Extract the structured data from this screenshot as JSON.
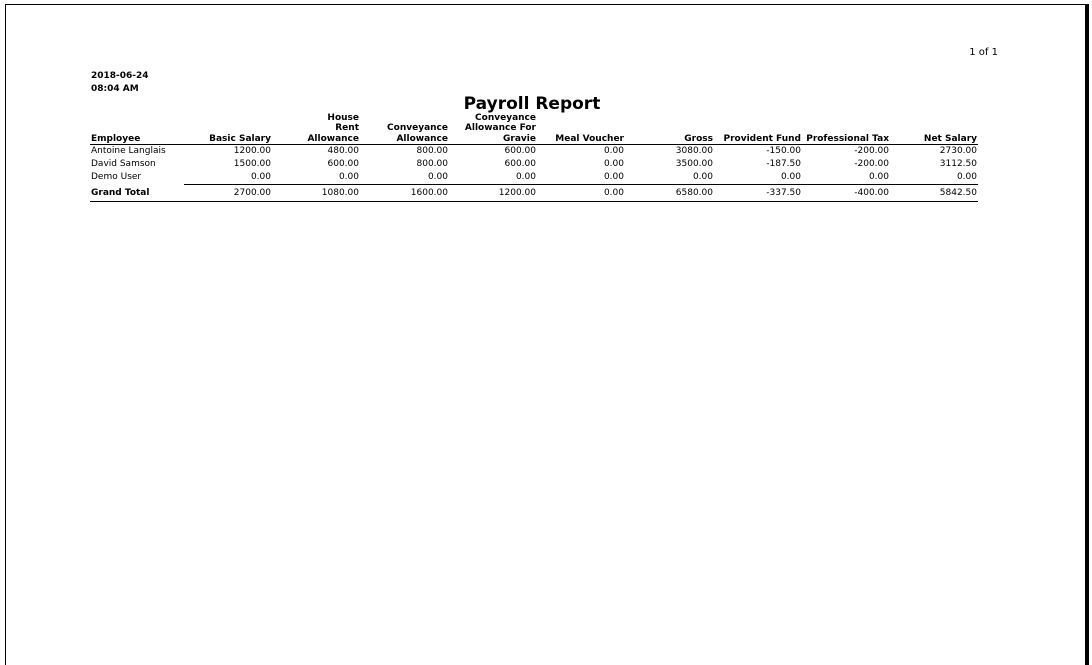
{
  "page": {
    "page_indicator": "1 of 1"
  },
  "report": {
    "date": "2018-06-24",
    "time": "08:04 AM",
    "title": "Payroll Report"
  },
  "table": {
    "columns": [
      "Employee",
      "Basic Salary",
      "House Rent Allowance",
      "Conveyance Allowance",
      "Conveyance Allowance For Gravie",
      "Meal Voucher",
      "Gross",
      "Provident Fund",
      "Professional Tax",
      "Net Salary"
    ],
    "rows": [
      [
        "Antoine Langlais",
        "1200.00",
        "480.00",
        "800.00",
        "600.00",
        "0.00",
        "3080.00",
        "-150.00",
        "-200.00",
        "2730.00"
      ],
      [
        "David Samson",
        "1500.00",
        "600.00",
        "800.00",
        "600.00",
        "0.00",
        "3500.00",
        "-187.50",
        "-200.00",
        "3112.50"
      ],
      [
        "Demo User",
        "0.00",
        "0.00",
        "0.00",
        "0.00",
        "0.00",
        "0.00",
        "0.00",
        "0.00",
        "0.00"
      ]
    ],
    "total": {
      "label": "Grand Total",
      "values": [
        "2700.00",
        "1080.00",
        "1600.00",
        "1200.00",
        "0.00",
        "6580.00",
        "-337.50",
        "-400.00",
        "5842.50"
      ]
    }
  }
}
